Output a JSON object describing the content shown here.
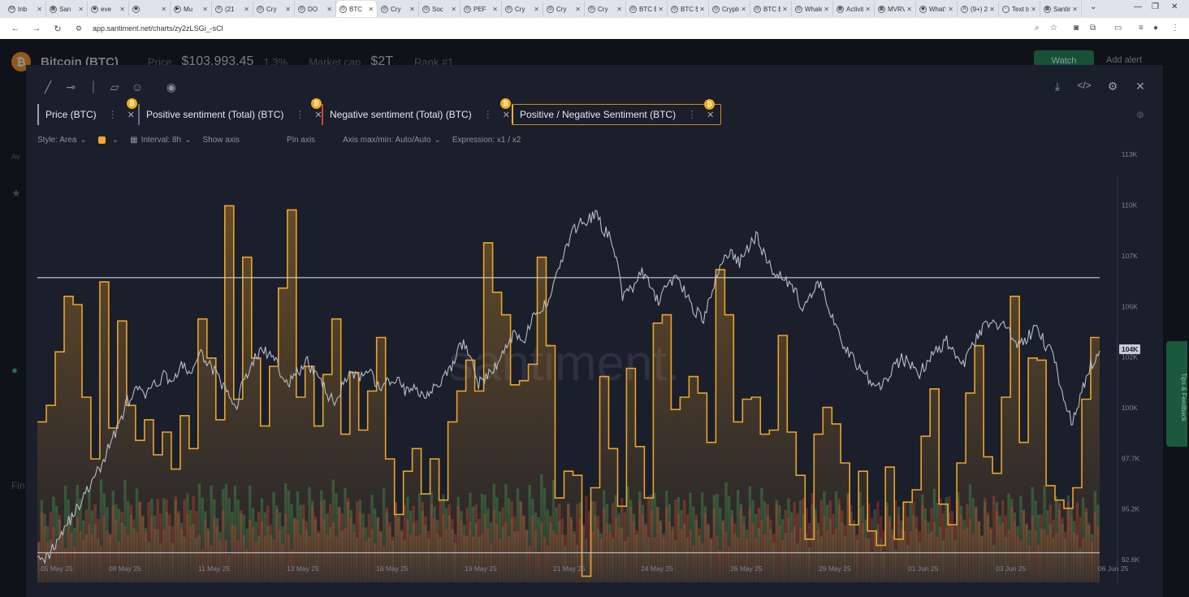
{
  "browser": {
    "tabs": [
      {
        "label": "Inb",
        "icon": "gmail-icon",
        "glyph": "M"
      },
      {
        "label": "San",
        "icon": "sheet-icon",
        "glyph": "▦"
      },
      {
        "label": "eve",
        "icon": "chrome-icon",
        "glyph": "◉"
      },
      {
        "label": "",
        "icon": "chrome-icon",
        "glyph": "◉"
      },
      {
        "label": "Mu",
        "icon": "youtube-icon",
        "glyph": "▶"
      },
      {
        "label": "(21",
        "icon": "x-icon",
        "glyph": "X"
      },
      {
        "label": "Cry",
        "icon": "site-icon",
        "glyph": "◎"
      },
      {
        "label": "DO",
        "icon": "site-icon",
        "glyph": "◎"
      },
      {
        "label": "BTC",
        "icon": "site-icon",
        "glyph": "◎"
      },
      {
        "label": "Cry",
        "icon": "site-icon",
        "glyph": "◎"
      },
      {
        "label": "Soc",
        "icon": "site-icon",
        "glyph": "◎"
      },
      {
        "label": "PEF",
        "icon": "site-icon",
        "glyph": "◎"
      },
      {
        "label": "Cry",
        "icon": "site-icon",
        "glyph": "◎"
      },
      {
        "label": "Cry",
        "icon": "site-icon",
        "glyph": "◎"
      },
      {
        "label": "Cry",
        "icon": "site-icon",
        "glyph": "◎"
      },
      {
        "label": "BTC ETF",
        "icon": "site-icon",
        "glyph": "◎"
      },
      {
        "label": "BTC $10",
        "icon": "site-icon",
        "glyph": "◎"
      },
      {
        "label": "Crypto",
        "icon": "site-icon",
        "glyph": "◎"
      },
      {
        "label": "BTC ET",
        "icon": "site-icon",
        "glyph": "◎"
      },
      {
        "label": "Whale",
        "icon": "site-icon",
        "glyph": "◎"
      },
      {
        "label": "Activity",
        "icon": "sheet-icon",
        "glyph": "▦"
      },
      {
        "label": "MVRV",
        "icon": "site-icon",
        "glyph": "▦"
      },
      {
        "label": "What's",
        "icon": "site-icon",
        "glyph": "◉"
      },
      {
        "label": "(9+) 2o",
        "icon": "x-icon",
        "glyph": "X"
      },
      {
        "label": "Text to",
        "icon": "site-icon",
        "glyph": "▫"
      },
      {
        "label": "Santim",
        "icon": "site-icon",
        "glyph": "▦"
      }
    ],
    "active_tab_index": 8,
    "url": "app.santiment.net/charts/zy2zLSGi_-sCl"
  },
  "background_page": {
    "asset_name": "Bitcoin (BTC)",
    "price_label": "Price",
    "price": "$103,993.45",
    "change": "1.3%",
    "mcap_label": "Market cap",
    "mcap": "$2T",
    "rank": "Rank #1",
    "watch_label": "Watch",
    "alert_label": "Add alert",
    "left_stub_1": "Av",
    "left_stub_2": "Fin",
    "feedback_label": "Tips & Feedback"
  },
  "metrics": [
    {
      "label": "Price (BTC)",
      "color": "#9aa0ae"
    },
    {
      "label": "Positive sentiment (Total) (BTC)",
      "color": "#6b7080"
    },
    {
      "label": "Negative sentiment (Total) (BTC)",
      "color": "#d0463d"
    },
    {
      "label": "Positive / Negative Sentiment (BTC)",
      "color": "#f5b13a"
    }
  ],
  "options": {
    "style": "Style: Area",
    "interval": "Interval: 8h",
    "show_axis": "Show axis",
    "pin_axis": "Pin axis",
    "axis_maxmin": "Axis max/min: Auto/Auto",
    "expression": "Expression: x1 / x2"
  },
  "chart_data": {
    "type": "line",
    "watermark": "santiment.",
    "y_ticks": [
      "113K",
      "110K",
      "107K",
      "105K",
      "102K",
      "100K",
      "97.7K",
      "95.2K",
      "92.6K"
    ],
    "y_range": [
      92600,
      113000
    ],
    "current_price_label": "104K",
    "current_price": 104000,
    "x_ticks": [
      "05 May 25",
      "08 May 25",
      "11 May 25",
      "13 May 25",
      "16 May 25",
      "19 May 25",
      "21 May 25",
      "24 May 25",
      "26 May 25",
      "29 May 25",
      "01 Jun 25",
      "03 Jun 25",
      "06 Jun 25"
    ],
    "horizontal_lines": [
      108000,
      94100
    ],
    "series": [
      {
        "name": "Price (BTC)",
        "values": [
          94200,
          93800,
          94600,
          95400,
          96000,
          96800,
          97600,
          98400,
          99500,
          100600,
          101700,
          102300,
          102100,
          102500,
          103100,
          102800,
          103500,
          103200,
          104100,
          103800,
          103000,
          102200,
          101400,
          102900,
          103800,
          104400,
          104000,
          103300,
          102700,
          103200,
          103700,
          103100,
          102300,
          101600,
          102800,
          103200,
          102900,
          103100,
          102400,
          102700,
          102900,
          102200,
          102400,
          102100,
          102500,
          102800,
          103400,
          104700,
          104300,
          102600,
          103000,
          103600,
          104400,
          105300,
          104800,
          105900,
          106300,
          107200,
          108600,
          109800,
          110700,
          110900,
          111200,
          110400,
          109700,
          107100,
          107400,
          108300,
          107600,
          106700,
          107700,
          108100,
          107200,
          106400,
          105900,
          107300,
          108900,
          109300,
          108700,
          109600,
          110100,
          108800,
          108300,
          108000,
          107500,
          106400,
          107000,
          107900,
          106200,
          105100,
          104300,
          103600,
          103100,
          102400,
          102700,
          103400,
          103900,
          103600,
          103200,
          103800,
          104400,
          104800,
          104200,
          103700,
          104600,
          105400,
          105800,
          105600,
          105300,
          104500,
          105000,
          105500,
          104600,
          104000,
          101800,
          100600,
          102200,
          103600,
          104300
        ]
      },
      {
        "name": "Positive / Negative Sentiment (BTC)",
        "values": [
          1.3,
          1.38,
          1.64,
          1.91,
          1.87,
          1.42,
          1.12,
          1.98,
          1.27,
          1.79,
          1.38,
          1.21,
          1.31,
          1.14,
          1.25,
          1.07,
          1.33,
          1.17,
          1.8,
          1.61,
          1.31,
          2.35,
          1.41,
          2.1,
          1.61,
          1.28,
          1.57,
          1.95,
          2.33,
          1.42,
          1.57,
          1.28,
          1.53,
          1.8,
          1.24,
          1.54,
          1.26,
          1.45,
          1.71,
          1.12,
          0.85,
          1.06,
          1.17,
          0.95,
          1.12,
          0.92,
          1.3,
          1.45,
          1.6,
          1.45,
          2.17,
          1.93,
          1.82,
          1.48,
          1.5,
          1.58,
          2.1,
          1.67,
          0.93,
          1.06,
          1.04,
          0.55,
          0.98,
          1.52,
          1.17,
          0.89,
          1.56,
          1.18,
          0.93,
          1.78,
          1.82,
          1.36,
          1.42,
          1.52,
          1.44,
          1.2,
          2.04,
          1.82,
          1.3,
          1.41,
          1.42,
          1.24,
          1.26,
          1.72,
          1.25,
          1.04,
          0.73,
          1.24,
          1.37,
          1.29,
          1.1,
          0.8,
          1.06,
          0.77,
          0.7,
          1.08,
          0.73,
          0.91,
          0.97,
          1.23,
          1.46,
          0.9,
          0.8,
          1.1,
          1.44,
          1.67,
          1.13,
          1.05,
          1.42,
          1.91,
          1.2,
          1.61,
          1.6,
          0.99,
          0.92,
          0.88,
          0.98,
          1.41,
          1.71
        ]
      }
    ]
  }
}
